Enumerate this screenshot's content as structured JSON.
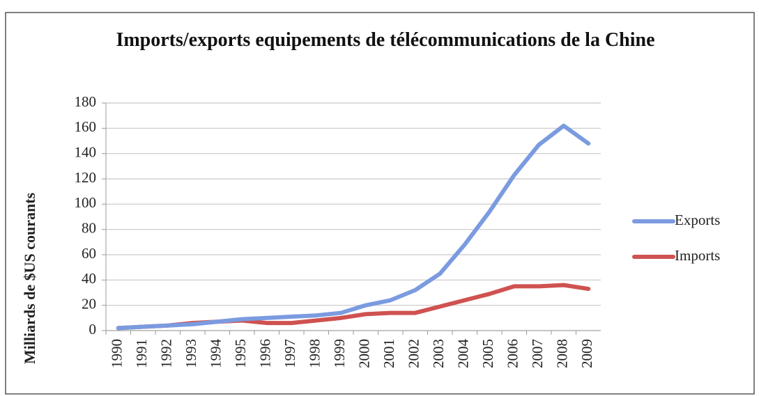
{
  "chart_data": {
    "type": "line",
    "title": "Imports/exports equipements de télécommunications de la Chine",
    "y_label": "Milliards de $US courants",
    "categories": [
      "1990",
      "1991",
      "1992",
      "1993",
      "1994",
      "1995",
      "1996",
      "1997",
      "1998",
      "1999",
      "2000",
      "2001",
      "2002",
      "2003",
      "2004",
      "2005",
      "2006",
      "2007",
      "2008",
      "2009"
    ],
    "series": [
      {
        "name": "Exports",
        "color": "#7b9be0",
        "values": [
          2,
          3,
          4,
          5,
          7,
          9,
          10,
          11,
          12,
          14,
          20,
          24,
          32,
          45,
          68,
          94,
          123,
          147,
          162,
          148
        ]
      },
      {
        "name": "Imports",
        "color": "#cf5250",
        "values": [
          2,
          3,
          4,
          6,
          7,
          8,
          6,
          6,
          8,
          10,
          13,
          14,
          14,
          19,
          24,
          29,
          35,
          35,
          36,
          33
        ]
      }
    ],
    "ylim": [
      0,
      180
    ],
    "yticks": [
      0,
      20,
      40,
      60,
      80,
      100,
      120,
      140,
      160,
      180
    ],
    "grid": true,
    "legend": "right"
  }
}
